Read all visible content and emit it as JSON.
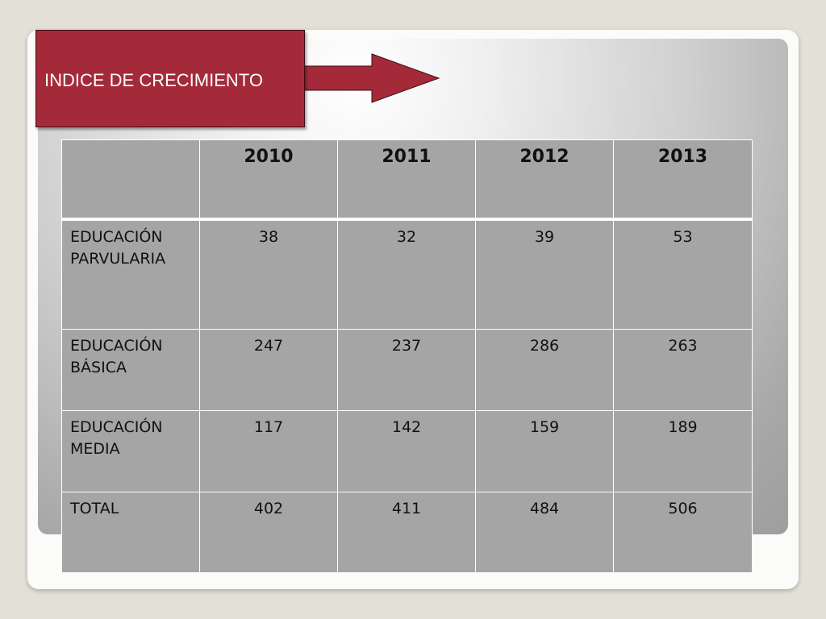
{
  "slide": {
    "title": "INDICE DE CRECIMIENTO",
    "colors": {
      "title_box": "#a42a3a",
      "title_text": "#ffffff",
      "table_fill": "#a5a5a5",
      "table_border": "#ffffff",
      "background": "#e3e1d7"
    },
    "arrow_icon": "right-arrow-icon"
  },
  "table": {
    "corner_label": "",
    "headers": [
      "2010",
      "2011",
      "2012",
      "2013"
    ],
    "rows": [
      {
        "label_line1": "EDUCACIÓN",
        "label_line2": "PARVULARIA",
        "values": [
          "38",
          "32",
          "39",
          "53"
        ]
      },
      {
        "label_line1": "EDUCACIÓN",
        "label_line2": "BÁSICA",
        "values": [
          "247",
          "237",
          "286",
          "263"
        ]
      },
      {
        "label_line1": "EDUCACIÓN",
        "label_line2": "MEDIA",
        "values": [
          "117",
          "142",
          "159",
          "189"
        ]
      },
      {
        "label_line1": "TOTAL",
        "label_line2": "",
        "values": [
          "402",
          "411",
          "484",
          "506"
        ]
      }
    ]
  }
}
